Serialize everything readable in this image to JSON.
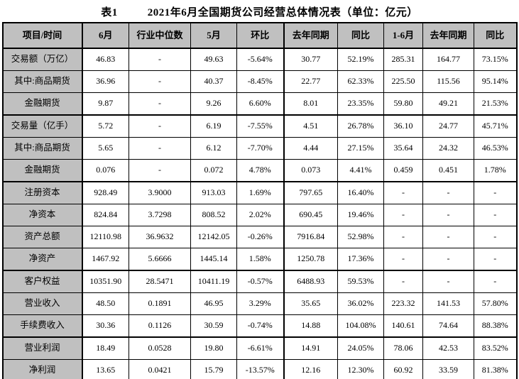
{
  "title": {
    "table_label": "表1",
    "text": "2021年6月全国期货公司经营总体情况表（单位：亿元）"
  },
  "colors": {
    "header_bg": "#c0c0c0",
    "label_column_bg": "#c0c0c0",
    "border": "#000000",
    "text": "#000000",
    "page_bg": "#ffffff"
  },
  "table": {
    "columns": [
      "项目/时间",
      "6月",
      "行业中位数",
      "5月",
      "环比",
      "去年同期",
      "同比",
      "1-6月",
      "去年同期",
      "同比"
    ],
    "rows": [
      {
        "label": "交易额（万亿）",
        "values": [
          "46.83",
          "-",
          "49.63",
          "-5.64%",
          "30.77",
          "52.19%",
          "285.31",
          "164.77",
          "73.15%"
        ]
      },
      {
        "label": "其中:商品期货",
        "values": [
          "36.96",
          "-",
          "40.37",
          "-8.45%",
          "22.77",
          "62.33%",
          "225.50",
          "115.56",
          "95.14%"
        ]
      },
      {
        "label": "金融期货",
        "values": [
          "9.87",
          "-",
          "9.26",
          "6.60%",
          "8.01",
          "23.35%",
          "59.80",
          "49.21",
          "21.53%"
        ]
      },
      {
        "label": "交易量（亿手）",
        "values": [
          "5.72",
          "-",
          "6.19",
          "-7.55%",
          "4.51",
          "26.78%",
          "36.10",
          "24.77",
          "45.71%"
        ]
      },
      {
        "label": "其中:商品期货",
        "values": [
          "5.65",
          "-",
          "6.12",
          "-7.70%",
          "4.44",
          "27.15%",
          "35.64",
          "24.32",
          "46.53%"
        ]
      },
      {
        "label": "金融期货",
        "values": [
          "0.076",
          "-",
          "0.072",
          "4.78%",
          "0.073",
          "4.41%",
          "0.459",
          "0.451",
          "1.78%"
        ]
      },
      {
        "label": "注册资本",
        "values": [
          "928.49",
          "3.9000",
          "913.03",
          "1.69%",
          "797.65",
          "16.40%",
          "-",
          "-",
          "-"
        ]
      },
      {
        "label": "净资本",
        "values": [
          "824.84",
          "3.7298",
          "808.52",
          "2.02%",
          "690.45",
          "19.46%",
          "-",
          "-",
          "-"
        ]
      },
      {
        "label": "资产总额",
        "values": [
          "12110.98",
          "36.9632",
          "12142.05",
          "-0.26%",
          "7916.84",
          "52.98%",
          "-",
          "-",
          "-"
        ]
      },
      {
        "label": "净资产",
        "values": [
          "1467.92",
          "5.6666",
          "1445.14",
          "1.58%",
          "1250.78",
          "17.36%",
          "-",
          "-",
          "-"
        ]
      },
      {
        "label": "客户权益",
        "values": [
          "10351.90",
          "28.5471",
          "10411.19",
          "-0.57%",
          "6488.93",
          "59.53%",
          "-",
          "-",
          "-"
        ]
      },
      {
        "label": "营业收入",
        "values": [
          "48.50",
          "0.1891",
          "46.95",
          "3.29%",
          "35.65",
          "36.02%",
          "223.32",
          "141.53",
          "57.80%"
        ]
      },
      {
        "label": "手续费收入",
        "values": [
          "30.36",
          "0.1126",
          "30.59",
          "-0.74%",
          "14.88",
          "104.08%",
          "140.61",
          "74.64",
          "88.38%"
        ]
      },
      {
        "label": "营业利润",
        "values": [
          "18.49",
          "0.0528",
          "19.80",
          "-6.61%",
          "14.91",
          "24.05%",
          "78.06",
          "42.53",
          "83.52%"
        ]
      },
      {
        "label": "净利润",
        "values": [
          "13.65",
          "0.0421",
          "15.79",
          "-13.57%",
          "12.16",
          "12.30%",
          "60.92",
          "33.59",
          "81.38%"
        ]
      }
    ]
  }
}
